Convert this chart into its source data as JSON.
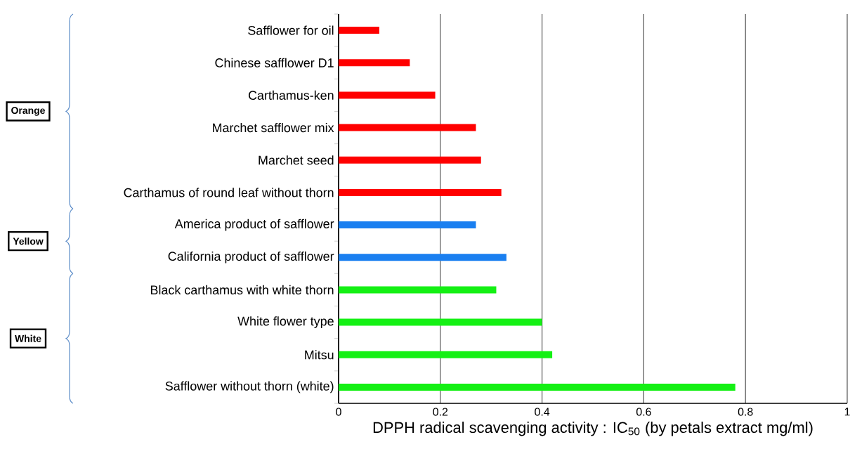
{
  "chart_data": {
    "type": "bar",
    "orientation": "horizontal",
    "categories": [
      "Safflower for oil",
      "Chinese safflower D1",
      "Carthamus-ken",
      "Marchet safflower mix",
      "Marchet seed",
      "Carthamus of round leaf without thorn",
      "America product of safflower",
      "California product of safflower",
      "Black carthamus with white thorn",
      "White flower type",
      "Mitsu",
      "Safflower without thorn (white)"
    ],
    "values": [
      0.08,
      0.14,
      0.19,
      0.27,
      0.28,
      0.32,
      0.27,
      0.33,
      0.31,
      0.4,
      0.42,
      0.78
    ],
    "colors": [
      "#ff0000",
      "#ff0000",
      "#ff0000",
      "#ff0000",
      "#ff0000",
      "#ff0000",
      "#1a7ff0",
      "#1a7ff0",
      "#14f014",
      "#14f014",
      "#14f014",
      "#14f014"
    ],
    "xlabel": "DPPH radical scavenging activity : IC$_{50}$ (by petals extract mg/ml)",
    "xlim": [
      0,
      1
    ],
    "xticks": [
      0,
      0.2,
      0.4,
      0.6,
      0.8,
      1
    ],
    "grid": "x",
    "annotations": [
      "Orange",
      "Yellow",
      "White"
    ]
  }
}
